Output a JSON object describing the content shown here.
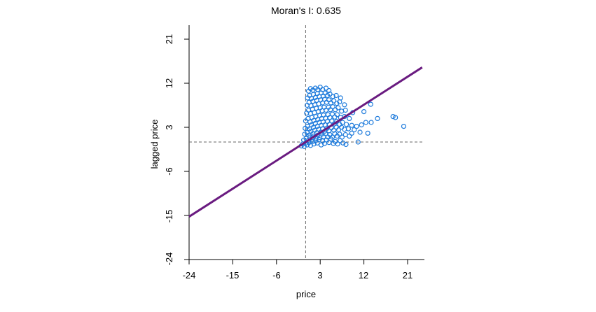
{
  "chart_data": {
    "type": "scatter",
    "title": "Moran's I: 0.635",
    "xlabel": "price",
    "ylabel": "lagged price",
    "xlim": [
      -24,
      24
    ],
    "ylim": [
      -24,
      24
    ],
    "x_ticks": [
      -24,
      -15,
      -6,
      3,
      12,
      21
    ],
    "y_ticks": [
      -24,
      -15,
      -6,
      3,
      12,
      21
    ],
    "x_tick_labels": [
      "-24",
      "-15",
      "-6",
      "3",
      "12",
      "21"
    ],
    "y_tick_labels": [
      "-24",
      "-15",
      "-6",
      "3",
      "12",
      "21"
    ],
    "mean_reference_lines": {
      "x": 0,
      "y": 0
    },
    "regression_line": {
      "intercept": 0,
      "slope": 0.635
    },
    "colors": {
      "title": "#7a1fa2",
      "points": "#1e7bdc",
      "regression_line": "#6a1b80",
      "reference_lines": "#666666",
      "axis": "#000000"
    },
    "points": [
      [
        -0.9,
        -0.8
      ],
      [
        -0.6,
        -0.4
      ],
      [
        -0.3,
        -0.9
      ],
      [
        0.0,
        -0.2
      ],
      [
        0.3,
        -0.6
      ],
      [
        0.7,
        -0.1
      ],
      [
        1.0,
        -0.7
      ],
      [
        1.4,
        0.1
      ],
      [
        1.7,
        -0.4
      ],
      [
        2.1,
        0.3
      ],
      [
        2.4,
        -0.2
      ],
      [
        2.8,
        0.5
      ],
      [
        3.2,
        -0.6
      ],
      [
        3.5,
        0.2
      ],
      [
        3.9,
        -0.3
      ],
      [
        4.3,
        0.4
      ],
      [
        4.8,
        -0.1
      ],
      [
        5.2,
        0.6
      ],
      [
        5.7,
        -0.3
      ],
      [
        6.1,
        0.1
      ],
      [
        6.6,
        -0.4
      ],
      [
        7.1,
        0.3
      ],
      [
        7.7,
        -0.2
      ],
      [
        8.3,
        -0.5
      ],
      [
        10.8,
        0.0
      ],
      [
        -0.4,
        0.4
      ],
      [
        0.1,
        0.7
      ],
      [
        0.5,
        0.3
      ],
      [
        0.9,
        1.0
      ],
      [
        1.3,
        0.6
      ],
      [
        1.7,
        1.2
      ],
      [
        2.1,
        0.8
      ],
      [
        2.5,
        1.4
      ],
      [
        2.9,
        0.9
      ],
      [
        3.3,
        1.6
      ],
      [
        3.7,
        1.1
      ],
      [
        4.1,
        1.7
      ],
      [
        4.6,
        1.0
      ],
      [
        5.0,
        1.5
      ],
      [
        5.5,
        1.0
      ],
      [
        6.0,
        1.7
      ],
      [
        6.5,
        1.2
      ],
      [
        7.0,
        1.6
      ],
      [
        7.5,
        1.0
      ],
      [
        8.2,
        1.5
      ],
      [
        9.0,
        1.2
      ],
      [
        -0.2,
        1.6
      ],
      [
        0.3,
        1.9
      ],
      [
        0.7,
        1.4
      ],
      [
        1.1,
        2.2
      ],
      [
        1.5,
        1.7
      ],
      [
        1.9,
        2.4
      ],
      [
        2.3,
        1.9
      ],
      [
        2.7,
        2.6
      ],
      [
        3.1,
        2.0
      ],
      [
        3.5,
        2.7
      ],
      [
        3.9,
        2.2
      ],
      [
        4.4,
        2.8
      ],
      [
        4.8,
        2.3
      ],
      [
        5.3,
        2.9
      ],
      [
        5.8,
        2.4
      ],
      [
        6.3,
        3.0
      ],
      [
        6.8,
        2.5
      ],
      [
        7.4,
        3.0
      ],
      [
        8.0,
        2.6
      ],
      [
        8.8,
        2.7
      ],
      [
        10.0,
        2.5
      ],
      [
        -0.1,
        2.8
      ],
      [
        0.4,
        3.2
      ],
      [
        0.8,
        2.7
      ],
      [
        1.2,
        3.5
      ],
      [
        1.6,
        3.0
      ],
      [
        2.0,
        3.8
      ],
      [
        2.4,
        3.2
      ],
      [
        2.8,
        4.0
      ],
      [
        3.2,
        3.4
      ],
      [
        3.6,
        4.1
      ],
      [
        4.0,
        3.5
      ],
      [
        4.5,
        4.2
      ],
      [
        4.9,
        3.6
      ],
      [
        5.4,
        4.3
      ],
      [
        5.9,
        3.7
      ],
      [
        6.4,
        4.2
      ],
      [
        7.0,
        3.6
      ],
      [
        7.6,
        4.0
      ],
      [
        8.4,
        3.6
      ],
      [
        9.5,
        3.4
      ],
      [
        11.5,
        3.5
      ],
      [
        12.4,
        4.0
      ],
      [
        0.0,
        4.3
      ],
      [
        0.5,
        4.8
      ],
      [
        0.9,
        4.1
      ],
      [
        1.3,
        5.0
      ],
      [
        1.7,
        4.4
      ],
      [
        2.1,
        5.2
      ],
      [
        2.5,
        4.6
      ],
      [
        2.9,
        5.4
      ],
      [
        3.3,
        4.8
      ],
      [
        3.7,
        5.5
      ],
      [
        4.1,
        4.9
      ],
      [
        4.6,
        5.6
      ],
      [
        5.0,
        5.0
      ],
      [
        5.5,
        5.7
      ],
      [
        6.0,
        5.1
      ],
      [
        6.5,
        5.6
      ],
      [
        7.2,
        5.0
      ],
      [
        8.0,
        5.2
      ],
      [
        9.0,
        4.8
      ],
      [
        0.2,
        5.9
      ],
      [
        0.6,
        6.5
      ],
      [
        1.0,
        5.8
      ],
      [
        1.4,
        6.7
      ],
      [
        1.8,
        6.0
      ],
      [
        2.2,
        6.9
      ],
      [
        2.6,
        6.2
      ],
      [
        3.0,
        7.0
      ],
      [
        3.4,
        6.4
      ],
      [
        3.8,
        7.1
      ],
      [
        4.2,
        6.5
      ],
      [
        4.7,
        7.1
      ],
      [
        5.1,
        6.6
      ],
      [
        5.6,
        7.2
      ],
      [
        6.1,
        6.6
      ],
      [
        6.7,
        7.0
      ],
      [
        7.4,
        6.3
      ],
      [
        8.2,
        6.5
      ],
      [
        9.7,
        6.0
      ],
      [
        12.0,
        6.2
      ],
      [
        0.3,
        7.5
      ],
      [
        0.7,
        8.1
      ],
      [
        1.1,
        7.4
      ],
      [
        1.5,
        8.3
      ],
      [
        1.9,
        7.6
      ],
      [
        2.3,
        8.5
      ],
      [
        2.7,
        7.8
      ],
      [
        3.1,
        8.6
      ],
      [
        3.5,
        8.0
      ],
      [
        3.9,
        8.7
      ],
      [
        4.3,
        8.1
      ],
      [
        4.8,
        8.6
      ],
      [
        5.2,
        8.0
      ],
      [
        5.8,
        8.4
      ],
      [
        6.4,
        7.9
      ],
      [
        7.0,
        8.2
      ],
      [
        8.0,
        7.6
      ],
      [
        0.4,
        9.0
      ],
      [
        0.8,
        9.5
      ],
      [
        1.2,
        8.9
      ],
      [
        1.6,
        9.7
      ],
      [
        2.0,
        9.1
      ],
      [
        2.4,
        9.9
      ],
      [
        2.8,
        9.3
      ],
      [
        3.2,
        10.0
      ],
      [
        3.6,
        9.4
      ],
      [
        4.0,
        10.0
      ],
      [
        4.5,
        9.5
      ],
      [
        5.0,
        9.8
      ],
      [
        5.6,
        9.3
      ],
      [
        6.3,
        9.5
      ],
      [
        7.2,
        9.0
      ],
      [
        0.6,
        10.4
      ],
      [
        1.0,
        10.9
      ],
      [
        1.5,
        10.6
      ],
      [
        2.0,
        11.0
      ],
      [
        2.5,
        10.7
      ],
      [
        3.0,
        11.2
      ],
      [
        3.5,
        10.7
      ],
      [
        4.2,
        11.0
      ],
      [
        4.8,
        10.5
      ],
      [
        9.5,
        1.8
      ],
      [
        10.5,
        3.2
      ],
      [
        11.2,
        2.0
      ],
      [
        12.8,
        1.8
      ],
      [
        13.5,
        4.0
      ],
      [
        14.8,
        4.8
      ],
      [
        18.0,
        5.2
      ],
      [
        18.5,
        5.0
      ],
      [
        20.2,
        3.2
      ],
      [
        13.4,
        7.7
      ]
    ]
  }
}
